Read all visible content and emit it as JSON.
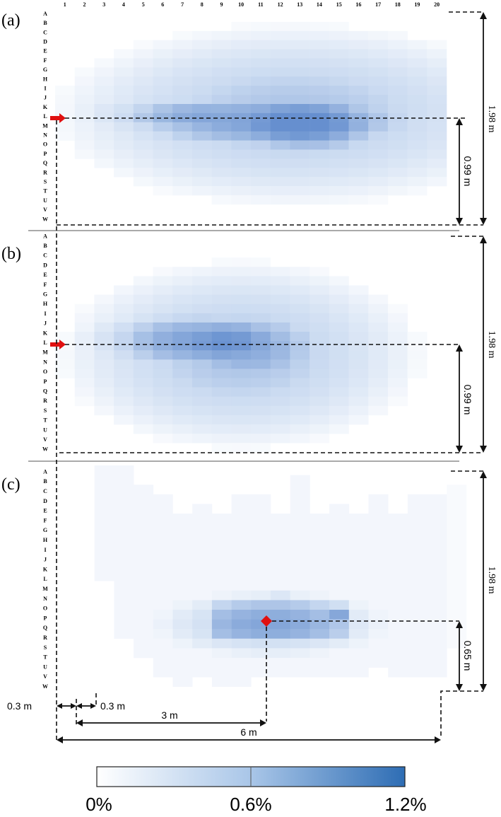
{
  "column_numbers": [
    "1",
    "2",
    "3",
    "4",
    "5",
    "6",
    "7",
    "8",
    "9",
    "10",
    "11",
    "12",
    "13",
    "14",
    "15",
    "16",
    "17",
    "18",
    "19",
    "20"
  ],
  "row_letters": [
    "A",
    "B",
    "C",
    "D",
    "E",
    "F",
    "G",
    "H",
    "I",
    "J",
    "K",
    "L",
    "M",
    "N",
    "O",
    "P",
    "Q",
    "R",
    "S",
    "T",
    "U",
    "V",
    "W"
  ],
  "panels": [
    {
      "label": "(a)",
      "height_label": "1.98 m",
      "half_label": "0.99 m",
      "source_marker": "red arrow at row L"
    },
    {
      "label": "(b)",
      "height_label": "1.98 m",
      "half_label": "0.99 m",
      "source_marker": "red arrow at row L"
    },
    {
      "label": "(c)",
      "height_label": "1.98 m",
      "half_label": "0.65 m",
      "source_marker": "red diamond"
    }
  ],
  "bottom_dimensions": {
    "left_offset": "0.3 m",
    "cell_width": "0.3 m",
    "to_marker": "3 m",
    "total_width": "6 m"
  },
  "colorbar": {
    "ticks": [
      "0%",
      "0.6%",
      "1.2%"
    ],
    "color_low": "#ffffff",
    "color_mid": "#a9c6e8",
    "color_high": "#2e6db4"
  },
  "colors": {
    "marker": "#e01010",
    "grid_light": "#dfe7f5",
    "grid_dark": "#3b6fc0"
  }
}
